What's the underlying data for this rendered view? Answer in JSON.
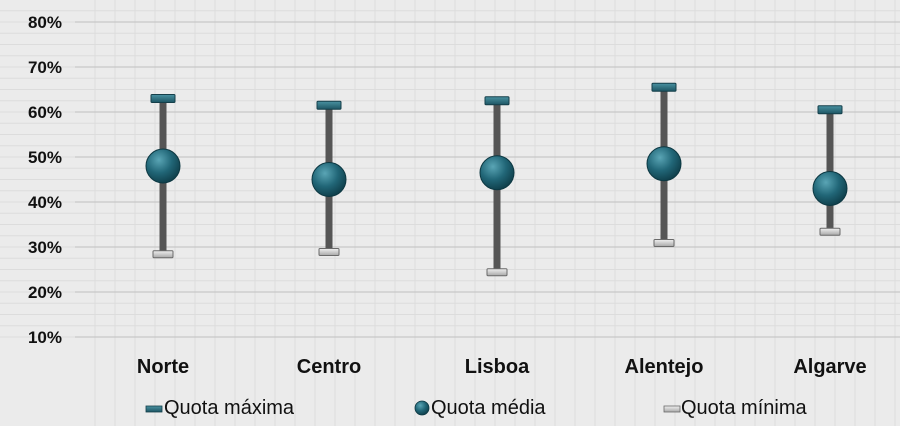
{
  "chart_data": {
    "type": "scatter",
    "title": "",
    "xlabel": "",
    "ylabel": "",
    "categories": [
      "Norte",
      "Centro",
      "Lisboa",
      "Alentejo",
      "Algarve"
    ],
    "ylim": [
      10,
      80
    ],
    "yticks": [
      "10%",
      "20%",
      "30%",
      "40%",
      "50%",
      "60%",
      "70%",
      "80%"
    ],
    "series": [
      {
        "name": "Quota máxima",
        "values": [
          63,
          61.5,
          62.5,
          65.5,
          60.5
        ]
      },
      {
        "name": "Quota média",
        "values": [
          48,
          45,
          46.5,
          48.5,
          43
        ]
      },
      {
        "name": "Quota mínima",
        "values": [
          28.5,
          29,
          24.5,
          31,
          33.5
        ]
      }
    ],
    "grid": true,
    "legend_position": "bottom",
    "colors": {
      "max": "#2d7382",
      "mean": "#1f6272",
      "min": "#c9c9c9",
      "whisker": "#555555",
      "gridline": "#c8c8c8",
      "minorgrid": "#dcdcdc"
    }
  }
}
